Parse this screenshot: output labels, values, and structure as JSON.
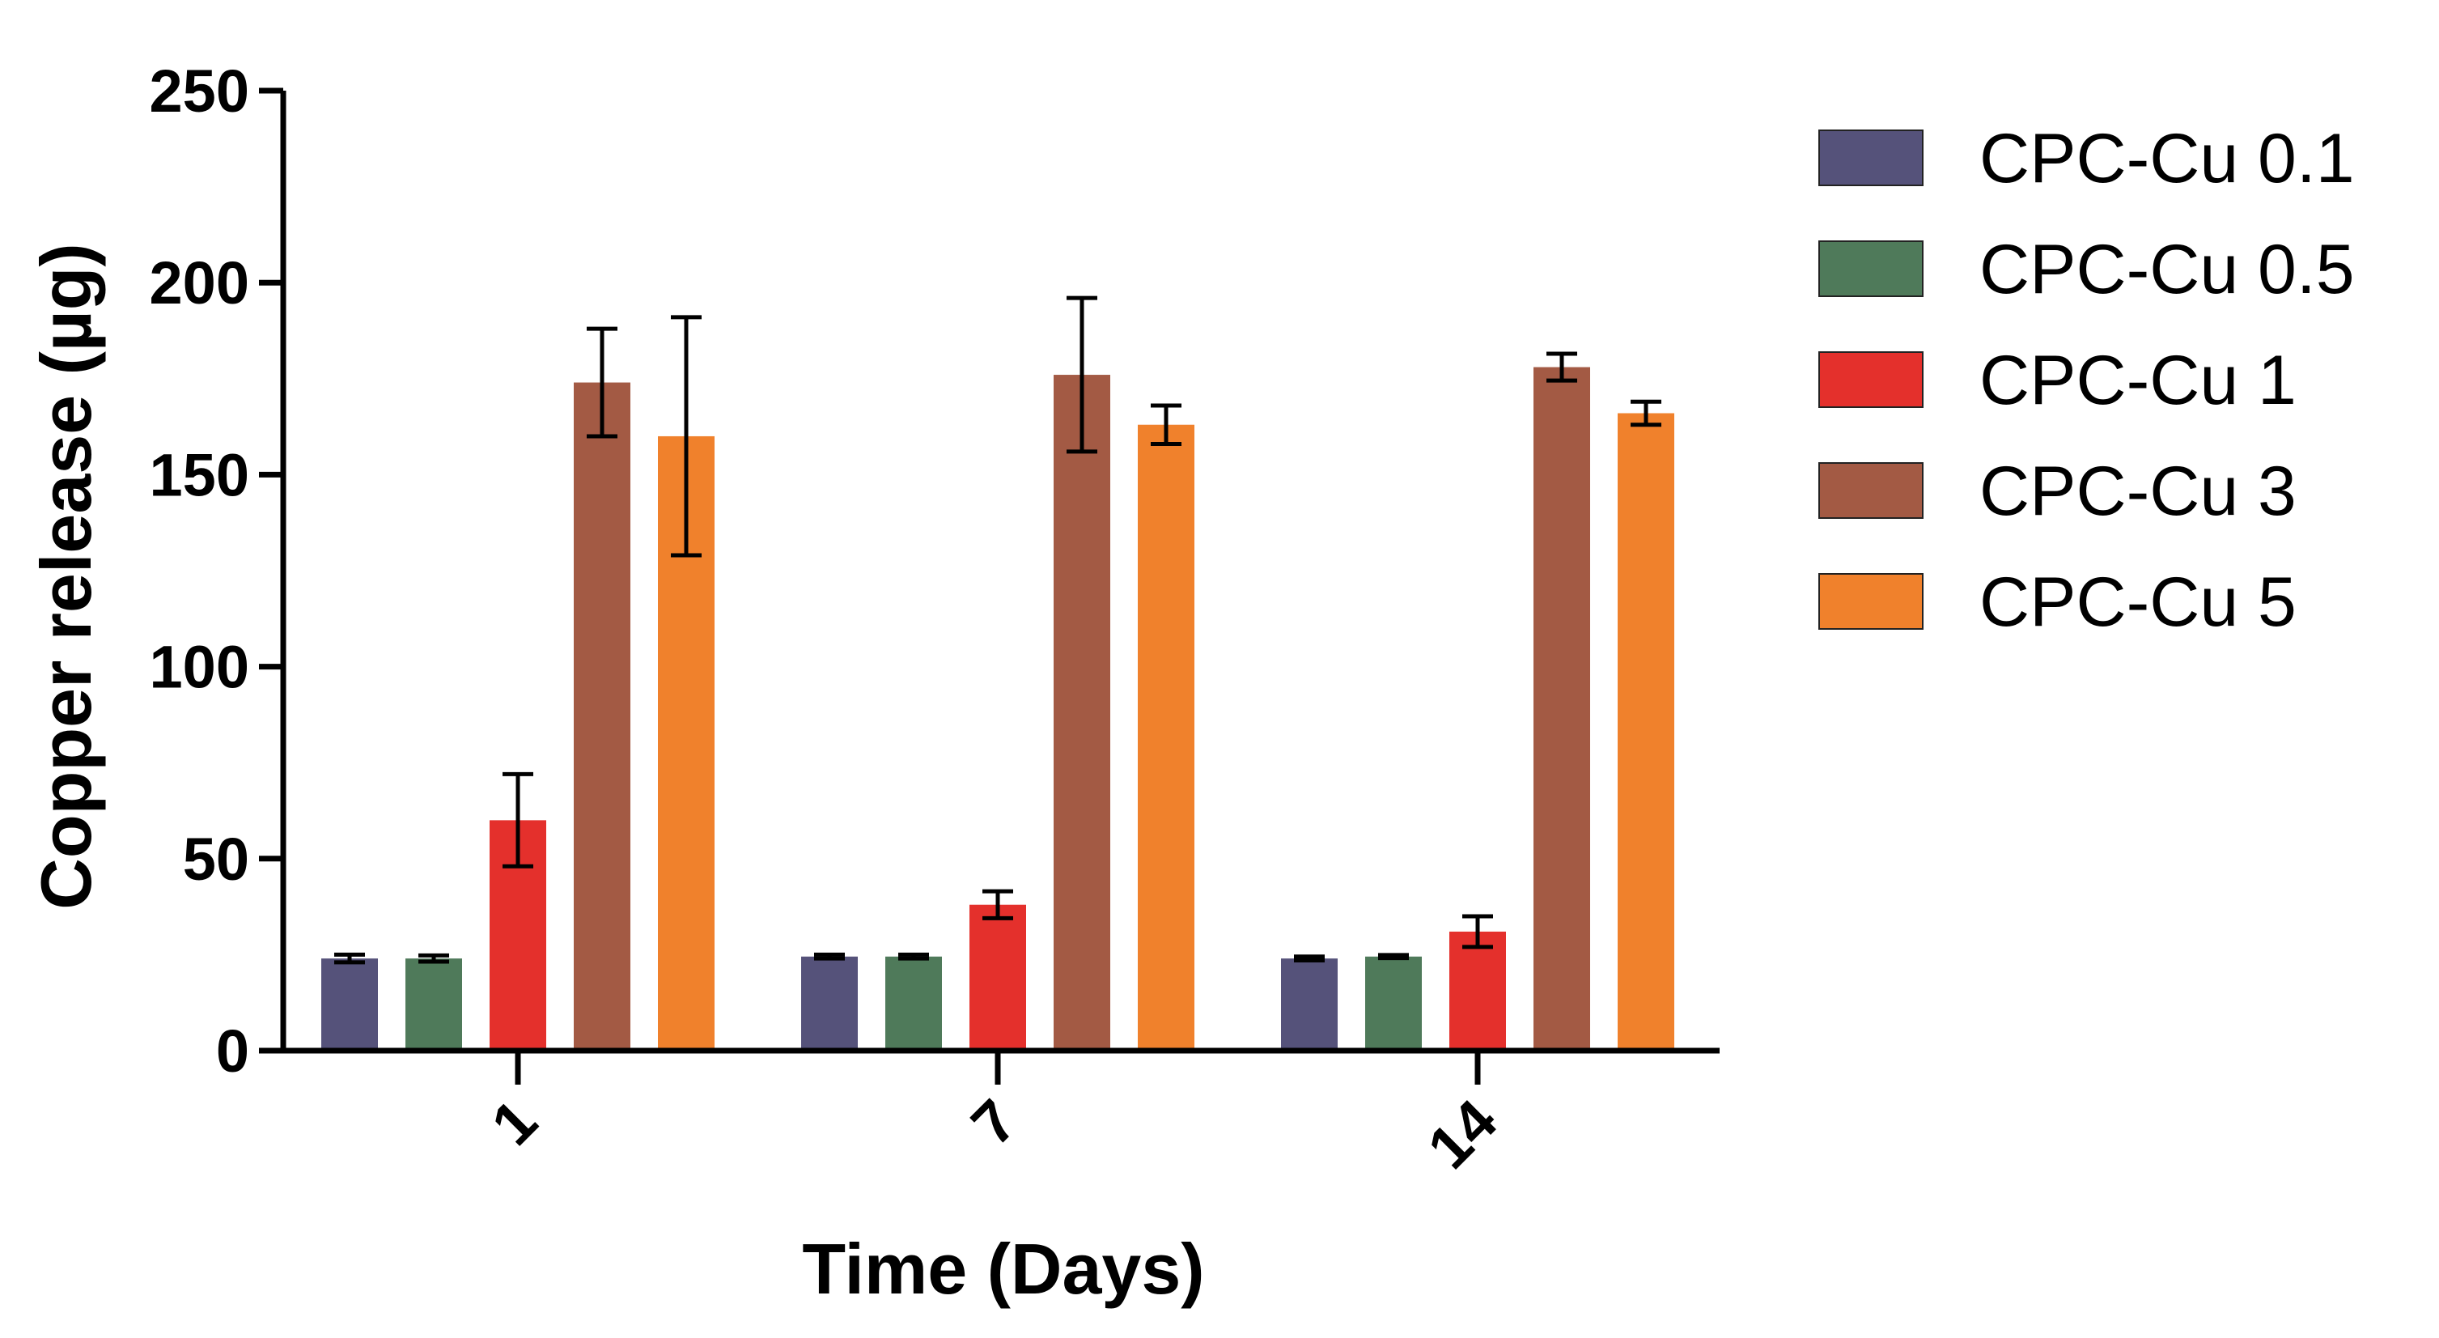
{
  "chart_data": {
    "type": "bar",
    "title": "",
    "xlabel": "Time (Days)",
    "ylabel": "Copper release (µg)",
    "categories": [
      "1",
      "7",
      "14"
    ],
    "ylim": [
      0,
      250
    ],
    "yticks": [
      "0",
      "50",
      "100",
      "150",
      "200",
      "250"
    ],
    "yticks_values": [
      0,
      50,
      100,
      150,
      200,
      250
    ],
    "legend_position": "right",
    "series": [
      {
        "name": "CPC-Cu 0.1",
        "color": "#55527a",
        "values": [
          24,
          24.5,
          24
        ],
        "errors": [
          1,
          0.5,
          0.5
        ]
      },
      {
        "name": "CPC-Cu 0.5",
        "color": "#4f7a5a",
        "values": [
          24,
          24.5,
          24.5
        ],
        "errors": [
          0.8,
          0.5,
          0.4
        ]
      },
      {
        "name": "CPC-Cu 1",
        "color": "#e4302c",
        "values": [
          60,
          38,
          31
        ],
        "errors": [
          12,
          3.5,
          4
        ]
      },
      {
        "name": "CPC-Cu 3",
        "color": "#a35a44",
        "values": [
          174,
          176,
          178
        ],
        "errors": [
          14,
          20,
          3.5
        ]
      },
      {
        "name": "CPC-Cu 5",
        "color": "#f0812c",
        "values": [
          160,
          163,
          166
        ],
        "errors": [
          31,
          5,
          3
        ]
      }
    ]
  }
}
